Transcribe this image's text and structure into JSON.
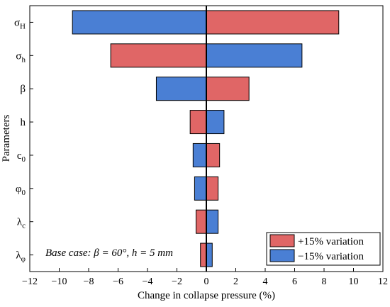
{
  "chart_data": {
    "type": "bar",
    "orientation": "horizontal",
    "xlabel": "Change in collapse pressure (%)",
    "ylabel": "Parameters",
    "xlim": [
      -12,
      12
    ],
    "xticks": [
      -12,
      -10,
      -8,
      -6,
      -4,
      -2,
      0,
      2,
      4,
      6,
      8,
      10,
      12
    ],
    "categories": [
      {
        "base": "σ",
        "sub": "H"
      },
      {
        "base": "σ",
        "sub": "h"
      },
      {
        "base": "β",
        "sub": ""
      },
      {
        "base": "h",
        "sub": ""
      },
      {
        "base": "c",
        "sub": "0"
      },
      {
        "base": "φ",
        "sub": "0"
      },
      {
        "base": "λ",
        "sub": "c"
      },
      {
        "base": "λ",
        "sub": "φ"
      }
    ],
    "series": [
      {
        "name": "+15% variation",
        "color": "#e06666",
        "values": [
          9.0,
          -6.5,
          2.9,
          -1.1,
          0.9,
          0.8,
          -0.7,
          -0.4
        ]
      },
      {
        "name": "−15% variation",
        "color": "#4a7fd4",
        "values": [
          -9.1,
          6.5,
          -3.4,
          1.2,
          -0.9,
          -0.8,
          0.8,
          0.4
        ]
      }
    ],
    "legend_position": "bottom-right",
    "annotation": "Base case: β = 60°, h = 5 mm",
    "grid": false
  }
}
